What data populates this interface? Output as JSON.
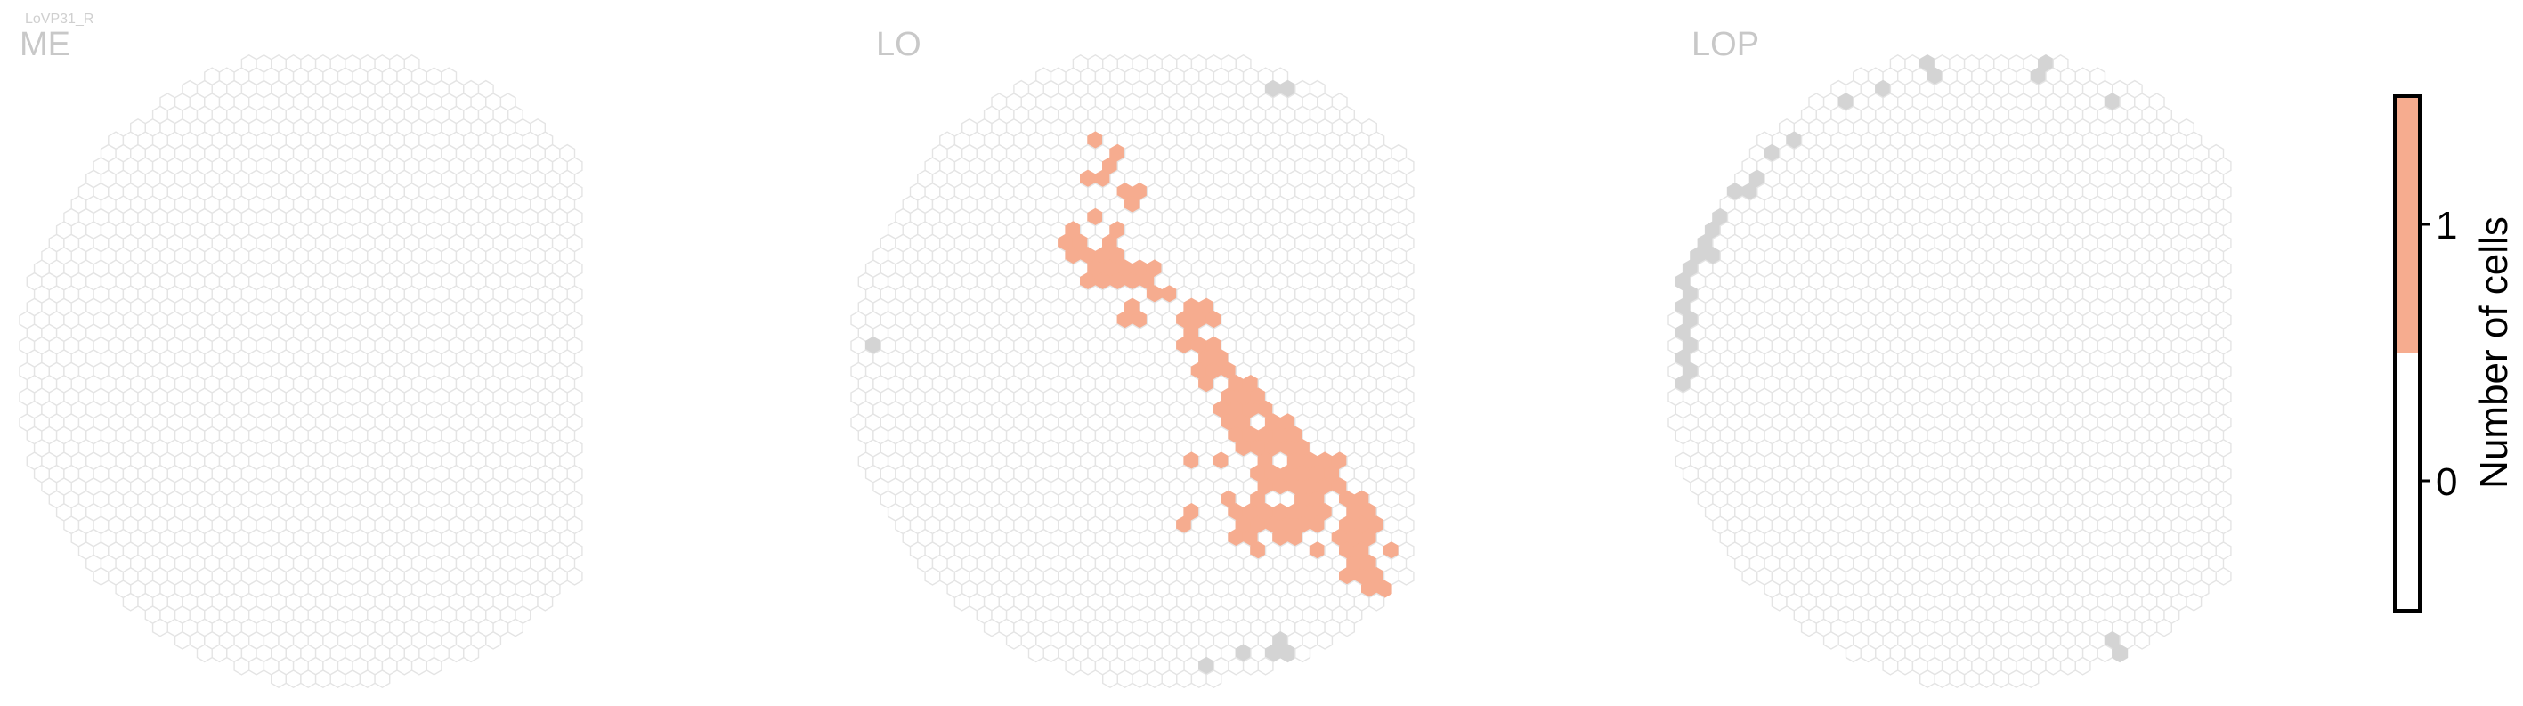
{
  "figure": {
    "subtitle": "LoVP31_R",
    "panel_titles": [
      "ME",
      "LO",
      "LOP"
    ]
  },
  "colors": {
    "empty_outline": "#e4e4e4",
    "empty_fill": "#ffffff",
    "outside_fill": "#d4d4d4",
    "one_cell_fill": "#f6ac8f",
    "title_color": "#c8c8c8"
  },
  "chart_data": {
    "type": "heatmap",
    "title": "",
    "colorbar": {
      "label": "Number of cells",
      "ticks": [
        "0",
        "1"
      ],
      "range": [
        0,
        1
      ],
      "colors": [
        "#ffffff",
        "#f6ac8f"
      ]
    },
    "panels": [
      {
        "name": "ME",
        "column_count": 35,
        "highlighted": [],
        "outside": []
      },
      {
        "name": "LO",
        "column_count": 35,
        "highlighted": [
          [
            13,
            5
          ],
          [
            14,
            6
          ],
          [
            13,
            7
          ],
          [
            15,
            8
          ],
          [
            13,
            9
          ],
          [
            12,
            10
          ],
          [
            14,
            10
          ],
          [
            12,
            11
          ],
          [
            13,
            11
          ],
          [
            14,
            11
          ],
          [
            13,
            12
          ],
          [
            14,
            12
          ],
          [
            15,
            12
          ],
          [
            16,
            12
          ],
          [
            16,
            13
          ],
          [
            17,
            13
          ],
          [
            15,
            14
          ],
          [
            18,
            14
          ],
          [
            19,
            14
          ],
          [
            18,
            15
          ],
          [
            18,
            16
          ],
          [
            19,
            16
          ],
          [
            19,
            17
          ],
          [
            20,
            17
          ],
          [
            19,
            18
          ],
          [
            21,
            18
          ],
          [
            20,
            19
          ],
          [
            21,
            19
          ],
          [
            22,
            19
          ],
          [
            20,
            20
          ],
          [
            21,
            20
          ],
          [
            23,
            20
          ],
          [
            21,
            21
          ],
          [
            22,
            21
          ],
          [
            23,
            21
          ],
          [
            24,
            21
          ],
          [
            18,
            22
          ],
          [
            20,
            22
          ],
          [
            22,
            22
          ],
          [
            24,
            22
          ],
          [
            25,
            22
          ],
          [
            26,
            22
          ],
          [
            22,
            23
          ],
          [
            23,
            23
          ],
          [
            24,
            23
          ],
          [
            25,
            23
          ],
          [
            26,
            23
          ],
          [
            20,
            24
          ],
          [
            22,
            24
          ],
          [
            24,
            24
          ],
          [
            25,
            24
          ],
          [
            27,
            24
          ],
          [
            18,
            25
          ],
          [
            21,
            25
          ],
          [
            22,
            25
          ],
          [
            23,
            25
          ],
          [
            24,
            25
          ],
          [
            25,
            25
          ],
          [
            27,
            25
          ],
          [
            28,
            25
          ],
          [
            21,
            26
          ],
          [
            23,
            26
          ],
          [
            24,
            26
          ],
          [
            26,
            26
          ],
          [
            27,
            26
          ],
          [
            28,
            26
          ],
          [
            22,
            27
          ],
          [
            25,
            27
          ],
          [
            27,
            27
          ],
          [
            29,
            27
          ],
          [
            27,
            28
          ],
          [
            28,
            28
          ],
          [
            28,
            29
          ],
          [
            29,
            29
          ]
        ],
        "outside": [
          [
            1,
            16
          ],
          [
            2,
            17
          ],
          [
            4,
            17
          ],
          [
            6,
            15
          ],
          [
            8,
            14
          ],
          [
            12,
            10
          ],
          [
            14,
            6
          ],
          [
            17,
            4
          ],
          [
            20,
            3
          ],
          [
            23,
            2
          ],
          [
            26,
            1
          ],
          [
            29,
            1
          ],
          [
            30,
            0
          ],
          [
            32,
            2
          ],
          [
            33,
            3
          ],
          [
            33,
            5
          ],
          [
            34,
            6
          ],
          [
            34,
            8
          ],
          [
            33,
            11
          ],
          [
            31,
            13
          ],
          [
            29,
            15
          ],
          [
            27,
            17
          ],
          [
            25,
            19
          ],
          [
            19,
            33
          ],
          [
            21,
            32
          ],
          [
            23,
            32
          ]
        ]
      },
      {
        "name": "LOP",
        "column_count": 35,
        "outside": [
          [
            1,
            16
          ],
          [
            1,
            17
          ],
          [
            1,
            18
          ],
          [
            2,
            17
          ],
          [
            2,
            18
          ],
          [
            3,
            18
          ],
          [
            3,
            19
          ],
          [
            4,
            19
          ],
          [
            5,
            19
          ],
          [
            6,
            20
          ],
          [
            7,
            20
          ],
          [
            8,
            21
          ],
          [
            9,
            21
          ],
          [
            10,
            22
          ],
          [
            11,
            22
          ],
          [
            12,
            23
          ],
          [
            13,
            23
          ],
          [
            14,
            24
          ],
          [
            15,
            25
          ],
          [
            16,
            26
          ],
          [
            17,
            26
          ],
          [
            18,
            27
          ],
          [
            19,
            28
          ],
          [
            20,
            28
          ],
          [
            21,
            29
          ],
          [
            22,
            30
          ],
          [
            23,
            31
          ],
          [
            24,
            32
          ],
          [
            25,
            33
          ],
          [
            26,
            33
          ],
          [
            27,
            34
          ],
          [
            28,
            34
          ],
          [
            29,
            33
          ],
          [
            30,
            32
          ],
          [
            31,
            30
          ],
          [
            32,
            28
          ],
          [
            33,
            26
          ],
          [
            34,
            24
          ],
          [
            34,
            22
          ],
          [
            34,
            20
          ],
          [
            33,
            18
          ],
          [
            32,
            16
          ],
          [
            31,
            14
          ],
          [
            30,
            12
          ],
          [
            29,
            10
          ],
          [
            28,
            8
          ],
          [
            27,
            6
          ],
          [
            26,
            5
          ],
          [
            25,
            4
          ],
          [
            24,
            3
          ],
          [
            22,
            2
          ],
          [
            20,
            1
          ],
          [
            18,
            0
          ],
          [
            16,
            0
          ],
          [
            14,
            1
          ],
          [
            12,
            2
          ],
          [
            10,
            3
          ],
          [
            8,
            4
          ],
          [
            7,
            5
          ],
          [
            6,
            6
          ],
          [
            5,
            7
          ],
          [
            4,
            8
          ],
          [
            3,
            9
          ],
          [
            2,
            10
          ],
          [
            2,
            11
          ],
          [
            1,
            12
          ],
          [
            1,
            13
          ],
          [
            1,
            14
          ],
          [
            1,
            15
          ]
        ],
        "highlighted": []
      }
    ]
  }
}
